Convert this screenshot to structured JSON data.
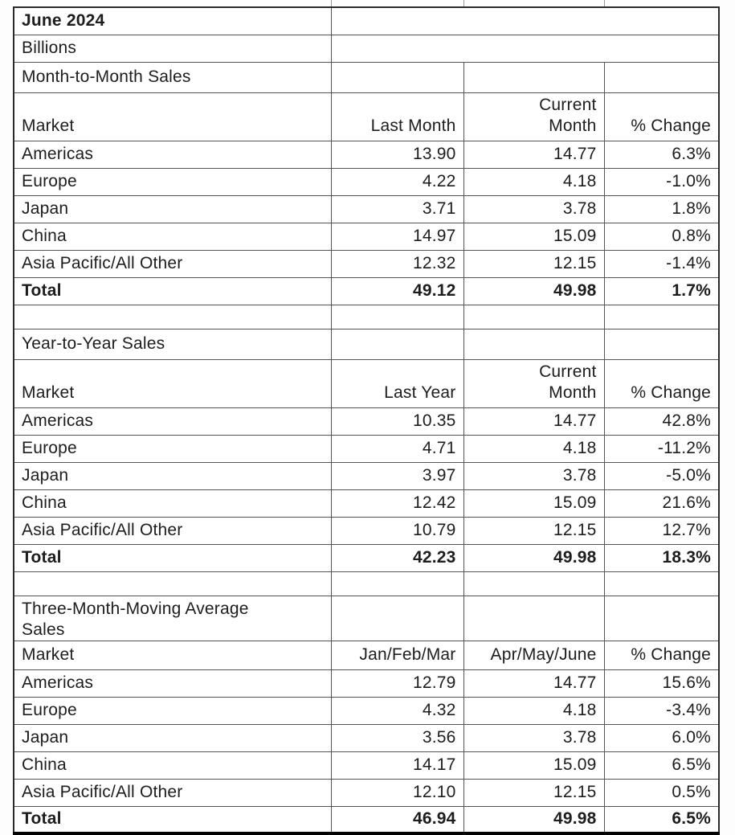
{
  "report": {
    "period": "June 2024",
    "units": "Billions",
    "sections": [
      {
        "title": "Month-to-Month Sales",
        "headers": [
          "Market",
          "Last Month",
          "Current\nMonth",
          "% Change"
        ],
        "rows": [
          {
            "market": "Americas",
            "prior": "13.90",
            "current": "14.77",
            "change": "6.3%"
          },
          {
            "market": "Europe",
            "prior": "4.22",
            "current": "4.18",
            "change": "-1.0%"
          },
          {
            "market": "Japan",
            "prior": "3.71",
            "current": "3.78",
            "change": "1.8%"
          },
          {
            "market": "China",
            "prior": "14.97",
            "current": "15.09",
            "change": "0.8%"
          },
          {
            "market": "Asia Pacific/All Other",
            "prior": "12.32",
            "current": "12.15",
            "change": "-1.4%"
          }
        ],
        "total": {
          "market": "Total",
          "prior": "49.12",
          "current": "49.98",
          "change": "1.7%"
        }
      },
      {
        "title": "Year-to-Year Sales",
        "headers": [
          "Market",
          "Last Year",
          "Current\nMonth",
          "% Change"
        ],
        "rows": [
          {
            "market": "Americas",
            "prior": "10.35",
            "current": "14.77",
            "change": "42.8%"
          },
          {
            "market": "Europe",
            "prior": "4.71",
            "current": "4.18",
            "change": "-11.2%"
          },
          {
            "market": "Japan",
            "prior": "3.97",
            "current": "3.78",
            "change": "-5.0%"
          },
          {
            "market": "China",
            "prior": "12.42",
            "current": "15.09",
            "change": "21.6%"
          },
          {
            "market": "Asia Pacific/All Other",
            "prior": "10.79",
            "current": "12.15",
            "change": "12.7%"
          }
        ],
        "total": {
          "market": "Total",
          "prior": "42.23",
          "current": "49.98",
          "change": "18.3%"
        }
      },
      {
        "title": "Three-Month-Moving Average\nSales",
        "headers": [
          "Market",
          "Jan/Feb/Mar",
          "Apr/May/June",
          "% Change"
        ],
        "rows": [
          {
            "market": "Americas",
            "prior": "12.79",
            "current": "14.77",
            "change": "15.6%"
          },
          {
            "market": "Europe",
            "prior": "4.32",
            "current": "4.18",
            "change": "-3.4%"
          },
          {
            "market": "Japan",
            "prior": "3.56",
            "current": "3.78",
            "change": "6.0%"
          },
          {
            "market": "China",
            "prior": "14.17",
            "current": "15.09",
            "change": "6.5%"
          },
          {
            "market": "Asia Pacific/All Other",
            "prior": "12.10",
            "current": "12.15",
            "change": "0.5%"
          }
        ],
        "total": {
          "market": "Total",
          "prior": "46.94",
          "current": "49.98",
          "change": "6.5%"
        }
      }
    ]
  },
  "style": {
    "grid_color": "#555555",
    "outer_border_color": "#2a2a2a",
    "bottom_border_color": "#000000",
    "text_color": "#1d1d1d",
    "cell_background": "#ffffff",
    "page_background": "#fdfdfd"
  },
  "layout_artifacts": {
    "cropped_row_tick_positions": [
      412,
      577,
      752
    ]
  }
}
